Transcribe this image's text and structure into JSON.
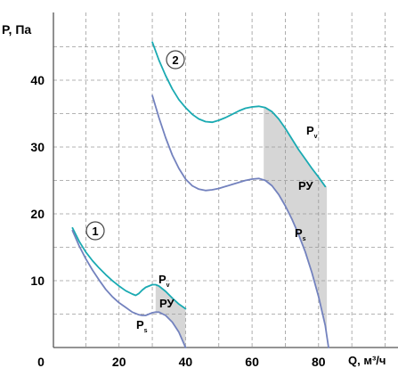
{
  "chart_data": {
    "type": "line",
    "title": "",
    "xlabel": "Q, м³/ч",
    "ylabel": "P, Па",
    "xlim": [
      0,
      105
    ],
    "ylim": [
      0,
      48
    ],
    "x_ticks": [
      0,
      20,
      40,
      60,
      80
    ],
    "y_ticks": [
      10,
      20,
      30,
      40
    ],
    "grid": true,
    "colors": {
      "pv": "#1aaab2",
      "ps": "#7382be",
      "region": "#d6d6d6",
      "grid": "#9a9a9a",
      "axis": "#555555"
    },
    "curve_markers": [
      "1",
      "2"
    ],
    "series": [
      {
        "name": "Pv",
        "curve": "1",
        "color": "#1aaab2",
        "x": [
          6,
          8,
          10,
          12,
          14,
          16,
          18,
          20,
          22,
          24,
          25,
          26,
          27,
          28,
          29,
          30,
          31,
          32,
          34,
          36,
          38,
          40
        ],
        "y": [
          17.9,
          15.9,
          14.3,
          13.0,
          11.9,
          10.9,
          10.0,
          9.2,
          8.5,
          8.0,
          7.8,
          8.1,
          8.6,
          9.0,
          9.2,
          9.4,
          9.4,
          9.2,
          8.4,
          7.4,
          6.5,
          5.8
        ]
      },
      {
        "name": "Ps",
        "curve": "1",
        "color": "#7382be",
        "x": [
          6,
          8,
          10,
          12,
          14,
          16,
          18,
          20,
          22,
          24,
          26,
          27,
          28,
          29,
          30,
          31,
          32,
          34,
          36,
          38,
          40
        ],
        "y": [
          17.5,
          15.2,
          13.3,
          11.6,
          10.1,
          8.7,
          7.6,
          6.7,
          6.0,
          5.3,
          4.9,
          4.8,
          4.8,
          5.0,
          5.2,
          5.3,
          5.3,
          4.8,
          3.8,
          2.3,
          0
        ]
      },
      {
        "name": "Pv",
        "curve": "2",
        "color": "#1aaab2",
        "x": [
          30,
          32,
          34,
          36,
          38,
          40,
          42,
          44,
          46,
          48,
          50,
          52,
          54,
          56,
          58,
          60,
          62,
          64,
          66,
          68,
          70,
          72,
          74,
          76,
          78,
          80,
          82
        ],
        "y": [
          45.7,
          43.0,
          40.7,
          38.7,
          37.1,
          35.9,
          34.9,
          34.2,
          33.8,
          33.7,
          34.0,
          34.4,
          34.9,
          35.4,
          35.8,
          36.0,
          36.1,
          35.9,
          35.3,
          34.2,
          32.8,
          31.2,
          29.6,
          28.2,
          26.8,
          25.5,
          24.1
        ]
      },
      {
        "name": "Ps",
        "curve": "2",
        "color": "#7382be",
        "x": [
          30,
          32,
          34,
          36,
          38,
          40,
          42,
          44,
          46,
          48,
          50,
          52,
          54,
          56,
          58,
          60,
          62,
          64,
          66,
          68,
          70,
          72,
          74,
          76,
          78,
          80,
          82,
          83
        ],
        "y": [
          37.7,
          34.4,
          31.4,
          28.8,
          26.8,
          25.2,
          24.2,
          23.7,
          23.5,
          23.6,
          23.8,
          24.1,
          24.4,
          24.7,
          25.0,
          25.2,
          25.3,
          25.0,
          24.2,
          22.9,
          21.2,
          19.2,
          16.9,
          14.3,
          11.2,
          7.6,
          3.3,
          0
        ]
      }
    ],
    "regions": [
      {
        "label": "РУ",
        "curve": "1",
        "x_from": 31,
        "x_to": 40
      },
      {
        "label": "РУ",
        "curve": "2",
        "x_from": 63.5,
        "x_to": 82.5
      }
    ]
  }
}
